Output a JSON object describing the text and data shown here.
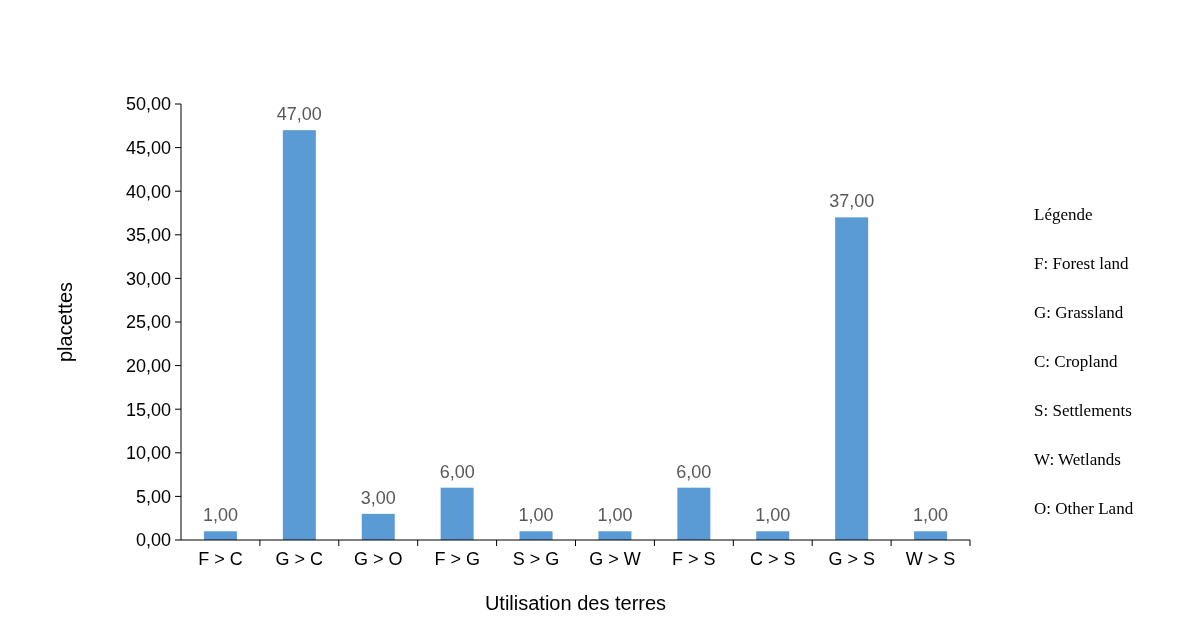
{
  "chart_data": {
    "type": "bar",
    "xlabel": "Utilisation des terres",
    "ylabel": "placettes",
    "categories": [
      "F > C",
      "G > C",
      "G > O",
      "F > G",
      "S > G",
      "G > W",
      "F > S",
      "C > S",
      "G > S",
      "W > S"
    ],
    "values": [
      1,
      47,
      3,
      6,
      1,
      1,
      6,
      1,
      37,
      1
    ],
    "value_labels": [
      "1,00",
      "47,00",
      "3,00",
      "6,00",
      "1,00",
      "1,00",
      "6,00",
      "1,00",
      "37,00",
      "1,00"
    ],
    "color": "#5b9bd5",
    "ylim": [
      0,
      50
    ],
    "yticks": [
      {
        "value": 0,
        "label": "0,00"
      },
      {
        "value": 5,
        "label": "5,00"
      },
      {
        "value": 10,
        "label": "10,00"
      },
      {
        "value": 15,
        "label": "15,00"
      },
      {
        "value": 20,
        "label": "20,00"
      },
      {
        "value": 25,
        "label": "25,00"
      },
      {
        "value": 30,
        "label": "30,00"
      },
      {
        "value": 35,
        "label": "35,00"
      },
      {
        "value": 40,
        "label": "40,00"
      },
      {
        "value": 45,
        "label": "45,00"
      },
      {
        "value": 50,
        "label": "50,00"
      }
    ],
    "annotations": [
      "Légende",
      "F: Forest land",
      "G: Grassland",
      "C: Cropland",
      "S: Settlements",
      "W: Wetlands",
      "O: Other Land"
    ]
  }
}
